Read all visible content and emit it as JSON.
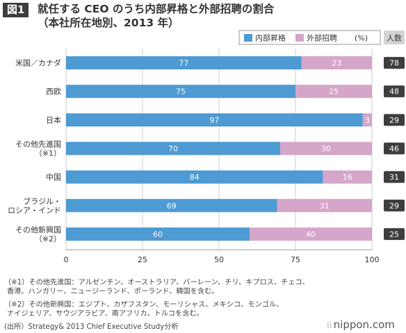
{
  "figure": {
    "badge": "図1",
    "title": "就任する CEO のうち内部昇格と外部招聘の割合",
    "subtitle": "（本社所在地別、2013 年）"
  },
  "legend": {
    "position": "top-right",
    "unit": "(%)",
    "count_header": "人数"
  },
  "colors": {
    "internal": "#4e9ad3",
    "external": "#d5a6c9",
    "count_box": "#3d3d3d",
    "count_header_bg": "#d4d4d4",
    "grid": "#cccccc"
  },
  "chart_data": {
    "type": "bar",
    "orientation": "horizontal",
    "stacked": true,
    "categories": [
      [
        "米国／カナダ"
      ],
      [
        "西欧"
      ],
      [
        "日本"
      ],
      [
        "その他先進国",
        "（※1）"
      ],
      [
        "中国"
      ],
      [
        "ブラジル・",
        "ロシア・インド"
      ],
      [
        "その他新興国",
        "（※2）"
      ]
    ],
    "series": [
      {
        "name": "内部昇格",
        "values": [
          77,
          75,
          97,
          70,
          84,
          69,
          60
        ]
      },
      {
        "name": "外部招聘",
        "values": [
          23,
          25,
          3,
          30,
          16,
          31,
          40
        ]
      }
    ],
    "counts": [
      78,
      48,
      29,
      46,
      31,
      29,
      25
    ],
    "xlim": [
      0,
      100
    ],
    "xticks": [
      0,
      25,
      50,
      75,
      100
    ],
    "grid": true
  },
  "notes": [
    "（※1）その他先進国：アルゼンチン、オーストラリア、バーレーン、チリ、キプロス、チェコ、",
    "香港、ハンガリー、ニュージーランド、ポーランド、韓国を含む。",
    "（※2）その他新興国：エジプト、カザフスタン、モーリシャス、メキシコ、モンゴル、",
    "ナイジェリア、サウジアラビア、南アフリカ、トルコを含む。",
    "(出所）Strategy& 2013 Chief Executive Study分析"
  ],
  "brand": "nippon.com"
}
